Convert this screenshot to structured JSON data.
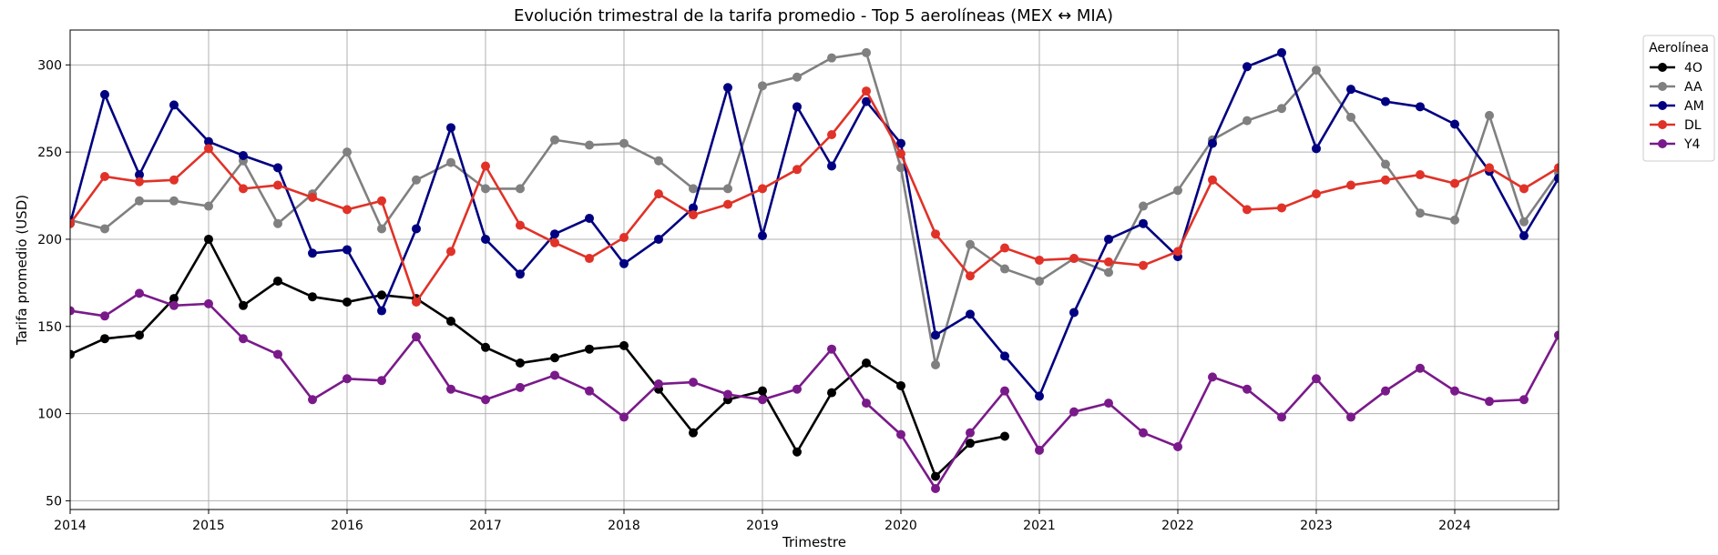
{
  "chart_data": {
    "type": "line",
    "title": "Evolución trimestral de la tarifa promedio - Top 5 aerolíneas (MEX ↔ MIA)",
    "xlabel": "Trimestre",
    "ylabel": "Tarifa promedio (USD)",
    "xlim": [
      2014,
      2024.75
    ],
    "ylim": [
      45,
      320
    ],
    "x_ticks": [
      2014,
      2015,
      2016,
      2017,
      2018,
      2019,
      2020,
      2021,
      2022,
      2023,
      2024
    ],
    "y_ticks": [
      50,
      100,
      150,
      200,
      250,
      300
    ],
    "grid": true,
    "legend": {
      "title": "Aerolínea",
      "placement": "outside-top-right"
    },
    "x": [
      2014,
      2014.25,
      2014.5,
      2014.75,
      2015,
      2015.25,
      2015.5,
      2015.75,
      2016,
      2016.25,
      2016.5,
      2016.75,
      2017,
      2017.25,
      2017.5,
      2017.75,
      2018,
      2018.25,
      2018.5,
      2018.75,
      2019,
      2019.25,
      2019.5,
      2019.75,
      2020,
      2020.25,
      2020.5,
      2020.75,
      2021,
      2021.25,
      2021.5,
      2021.75,
      2022,
      2022.25,
      2022.5,
      2022.75,
      2023,
      2023.25,
      2023.5,
      2023.75,
      2024,
      2024.25,
      2024.5,
      2024.75
    ],
    "series": [
      {
        "name": "4O",
        "color": "#000000",
        "values": [
          134,
          143,
          145,
          166,
          200,
          162,
          176,
          167,
          164,
          168,
          166,
          153,
          138,
          129,
          132,
          137,
          139,
          114,
          89,
          108,
          113,
          78,
          112,
          129,
          116,
          64,
          83,
          87,
          null,
          null,
          null,
          null,
          null,
          null,
          null,
          null,
          null,
          null,
          null,
          null,
          null,
          null,
          null,
          null
        ]
      },
      {
        "name": "AA",
        "color": "#808080",
        "values": [
          211,
          206,
          222,
          222,
          219,
          245,
          209,
          226,
          250,
          206,
          234,
          244,
          229,
          229,
          257,
          254,
          255,
          245,
          229,
          229,
          288,
          293,
          304,
          307,
          241,
          128,
          197,
          183,
          176,
          189,
          181,
          219,
          228,
          257,
          268,
          275,
          297,
          270,
          243,
          215,
          211,
          271,
          210,
          238
        ]
      },
      {
        "name": "AM",
        "color": "#000080",
        "values": [
          209,
          283,
          237,
          277,
          256,
          248,
          241,
          192,
          194,
          159,
          206,
          264,
          200,
          180,
          203,
          212,
          186,
          200,
          218,
          287,
          202,
          276,
          242,
          279,
          255,
          145,
          157,
          133,
          110,
          158,
          200,
          209,
          190,
          255,
          299,
          307,
          252,
          286,
          279,
          276,
          266,
          239,
          202,
          235
        ]
      },
      {
        "name": "DL",
        "color": "#e03228",
        "values": [
          209,
          236,
          233,
          234,
          252,
          229,
          231,
          224,
          217,
          222,
          164,
          193,
          242,
          208,
          198,
          189,
          201,
          226,
          214,
          220,
          229,
          240,
          260,
          285,
          249,
          203,
          179,
          195,
          188,
          189,
          187,
          185,
          193,
          234,
          217,
          218,
          226,
          231,
          234,
          237,
          232,
          241,
          229,
          241
        ]
      },
      {
        "name": "Y4",
        "color": "#7a1a8a",
        "values": [
          159,
          156,
          169,
          162,
          163,
          143,
          134,
          108,
          120,
          119,
          144,
          114,
          108,
          115,
          122,
          113,
          98,
          117,
          118,
          111,
          108,
          114,
          137,
          106,
          88,
          57,
          89,
          113,
          79,
          101,
          106,
          89,
          81,
          121,
          114,
          98,
          120,
          98,
          113,
          126,
          113,
          107,
          108,
          145
        ]
      }
    ]
  }
}
